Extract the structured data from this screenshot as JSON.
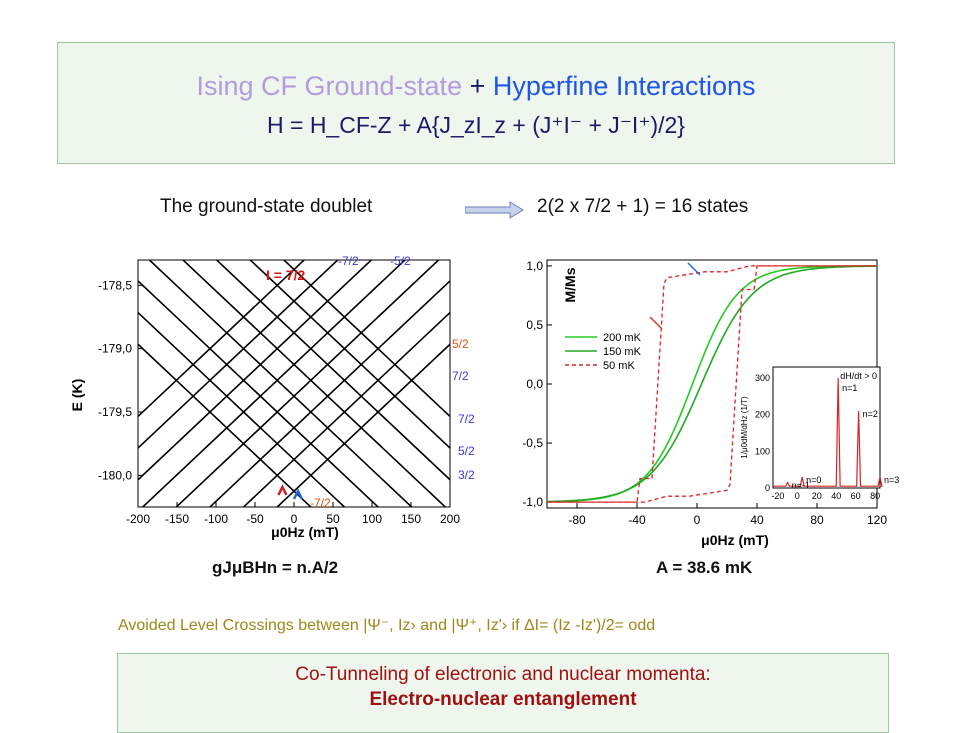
{
  "header": {
    "title_part1": "Ising CF Ground-state",
    "title_plus": " + ",
    "title_part2": "Hyperfine  Interactions",
    "formula": "H  =  H_CF-Z  +  A{J_zI_z + (J⁺I⁻ + J⁻I⁺)/2}"
  },
  "doublet": {
    "label": "The ground-state doublet",
    "states": "2(2 x 7/2  +  1) = 16 states"
  },
  "chart_data": [
    {
      "type": "line",
      "title": "",
      "xlabel": "μ0Hz (mT)",
      "ylabel": "E (K)",
      "xlim": [
        -200,
        200
      ],
      "ylim": [
        -180.25,
        -178.3
      ],
      "x_ticks": [
        "-200",
        "-150",
        "-100",
        "-50",
        "0",
        "50",
        "100",
        "150",
        "200"
      ],
      "y_ticks": [
        "-178,5",
        "-179,0",
        "-179,5",
        "-180,0"
      ],
      "description": "Zeeman-split hyperfine levels: 8 ascending and 8 descending straight lines forming a crossing grid",
      "level_labels": [
        "I = 7/2",
        "-7/2",
        "-5/2",
        "5/2",
        "7/2",
        "7/2",
        "5/2",
        "3/2",
        "-7/2"
      ]
    },
    {
      "type": "line",
      "title": "",
      "xlabel": "μ0Hz (mT)",
      "ylabel": "M/Ms",
      "xlim": [
        -100,
        120
      ],
      "ylim": [
        -1.05,
        1.05
      ],
      "x_ticks": [
        "-80",
        "-40",
        "0",
        "40",
        "80",
        "120"
      ],
      "y_ticks": [
        "1,0",
        "0,5",
        "0,0",
        "-0,5",
        "-1,0"
      ],
      "series": [
        {
          "name": "200 mK",
          "color": "#22cc22",
          "style": "solid"
        },
        {
          "name": "150 mK",
          "color": "#22aa22",
          "style": "solid"
        },
        {
          "name": "50 mK",
          "color": "#dd2222",
          "style": "dashed"
        }
      ],
      "inset": {
        "ylabel": "1/μ0dM/dHz (1/T)",
        "annotation": "dH/dt > 0",
        "x_ticks": [
          "-20",
          "0",
          "20",
          "40",
          "60",
          "80"
        ],
        "y_ticks": [
          "300",
          "200",
          "100",
          "0"
        ],
        "peaks": [
          {
            "label": "n=-1",
            "x": -10,
            "y": 15
          },
          {
            "label": "n=0",
            "x": 5,
            "y": 30
          },
          {
            "label": "n=1",
            "x": 42,
            "y": 300
          },
          {
            "label": "n=2",
            "x": 63,
            "y": 210
          },
          {
            "label": "n=3",
            "x": 85,
            "y": 30
          }
        ]
      }
    }
  ],
  "captions": {
    "left": "gJμBHn = n.A/2",
    "right": "A = 38.6 mK"
  },
  "avoided": "Avoided Level Crossings  between |Ψ⁻, Iz›  and  |Ψ⁺, Iz'›   if   ΔI= (Iz -Iz')/2= odd",
  "bottom": {
    "line1": "Co-Tunneling of electronic and nuclear momenta:",
    "line2": "Electro-nuclear entanglement"
  }
}
